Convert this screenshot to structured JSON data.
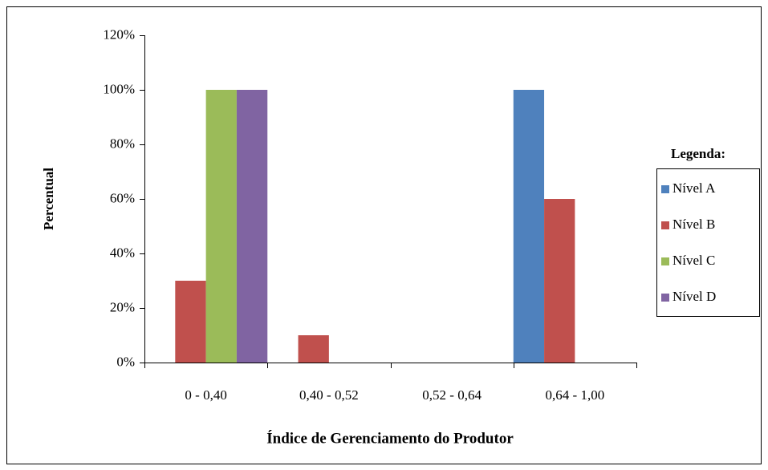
{
  "chart_data": {
    "type": "bar",
    "x_label": "Índice de Gerenciamento do Produtor",
    "y_label": "Percentual",
    "legend_title": "Legenda:",
    "legend_position": "right",
    "categories": [
      "0 - 0,40",
      "0,40 - 0,52",
      "0,52 - 0,64",
      "0,64 - 1,00"
    ],
    "series": [
      {
        "name": "Nível A",
        "color": "#4f81bd",
        "values": [
          0,
          0,
          0,
          100
        ]
      },
      {
        "name": "Nível B",
        "color": "#c0504d",
        "values": [
          30,
          10,
          0,
          60
        ]
      },
      {
        "name": "Nível C",
        "color": "#9bbb59",
        "values": [
          100,
          0,
          0,
          0
        ]
      },
      {
        "name": "Nível D",
        "color": "#8064a2",
        "values": [
          100,
          0,
          0,
          0
        ]
      }
    ],
    "ylim": [
      0,
      120
    ],
    "yticks": [
      {
        "value": 0,
        "label": "0%"
      },
      {
        "value": 20,
        "label": "20%"
      },
      {
        "value": 40,
        "label": "40%"
      },
      {
        "value": 60,
        "label": "60%"
      },
      {
        "value": 80,
        "label": "80%"
      },
      {
        "value": 100,
        "label": "100%"
      },
      {
        "value": 120,
        "label": "120%"
      }
    ],
    "grid": false
  }
}
